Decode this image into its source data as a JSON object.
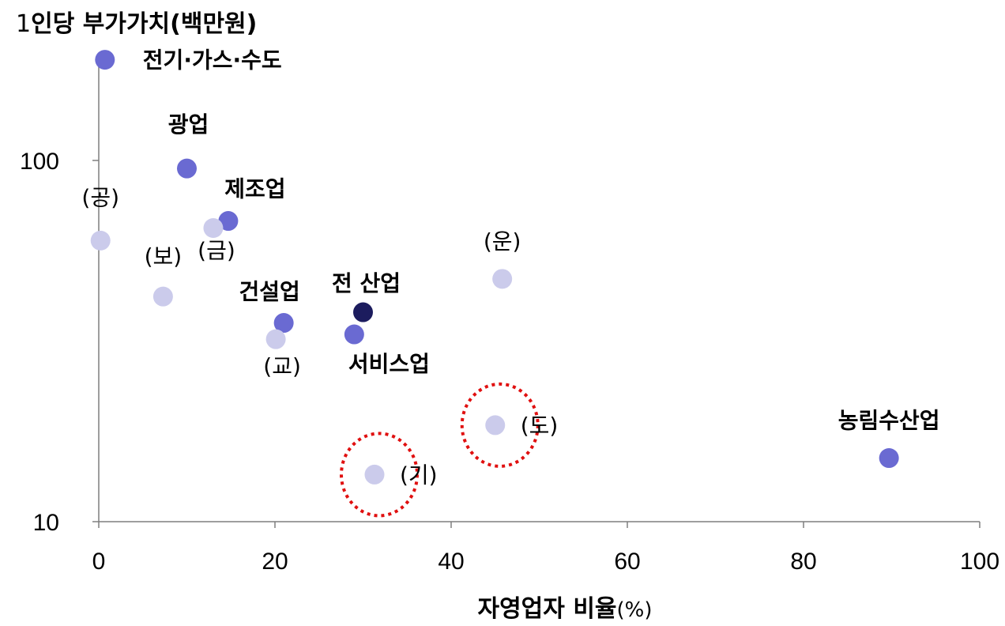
{
  "chart_data": {
    "type": "scatter",
    "title": "",
    "ylabel_prefix": "1",
    "ylabel_main": "인당 부가가치",
    "ylabel_unit": "(백만원)",
    "xlabel_main": "자영업자 비율",
    "xlabel_unit": "(%)",
    "xlim": [
      0,
      100
    ],
    "ylim": [
      10,
      200
    ],
    "y_scale": "log",
    "x_ticks": [
      0,
      20,
      40,
      60,
      80,
      100
    ],
    "x_tick_labels": [
      "0",
      "20",
      "40",
      "60",
      "80",
      "100"
    ],
    "y_ticks": [
      10,
      100
    ],
    "y_tick_labels": [
      "10",
      "100"
    ],
    "grid": false,
    "colors": {
      "industry": "#6a6ad2",
      "subsector": "#cbcbeb",
      "total": "#1c1c5e",
      "highlight_ring": "#e01010"
    },
    "points": [
      {
        "label": "전기·가스·수도",
        "x": 0.7,
        "y": 190,
        "group": "industry"
      },
      {
        "label": "광업",
        "x": 10,
        "y": 95,
        "group": "industry"
      },
      {
        "label": "제조업",
        "x": 14.7,
        "y": 68,
        "group": "industry"
      },
      {
        "label": "(공)",
        "x": 0.2,
        "y": 60,
        "group": "subsector"
      },
      {
        "label": "(금)",
        "x": 13,
        "y": 65,
        "group": "subsector"
      },
      {
        "label": "(보)",
        "x": 7.3,
        "y": 42,
        "group": "subsector"
      },
      {
        "label": "건설업",
        "x": 21,
        "y": 35.5,
        "group": "industry"
      },
      {
        "label": "(교)",
        "x": 20.1,
        "y": 32,
        "group": "subsector"
      },
      {
        "label": "전 산업",
        "x": 30,
        "y": 38,
        "group": "total"
      },
      {
        "label": "서비스업",
        "x": 29,
        "y": 33,
        "group": "industry"
      },
      {
        "label": "(운)",
        "x": 45.8,
        "y": 47,
        "group": "subsector"
      },
      {
        "label": "(도)",
        "x": 45,
        "y": 18.5,
        "group": "subsector",
        "highlighted": true
      },
      {
        "label": "(기)",
        "x": 31.3,
        "y": 13.5,
        "group": "subsector",
        "highlighted": true
      },
      {
        "label": "농림수산업",
        "x": 89.7,
        "y": 15,
        "group": "industry"
      }
    ]
  }
}
